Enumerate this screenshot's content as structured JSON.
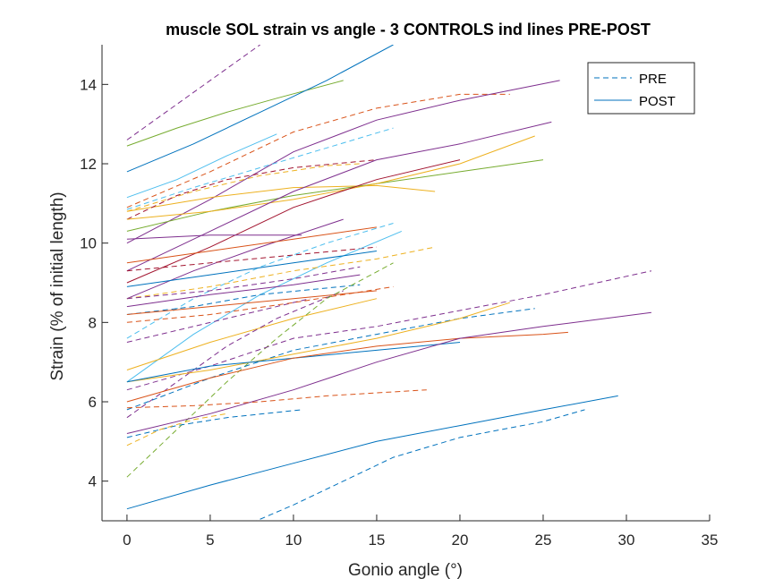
{
  "chart_data": {
    "type": "line",
    "title": "muscle SOL strain vs angle - 3 CONTROLS ind lines PRE-POST",
    "xlabel": "Gonio angle (°)",
    "ylabel": "Strain (% of initial length)",
    "xlim": [
      -1.5,
      35
    ],
    "ylim": [
      3,
      15
    ],
    "xticks": [
      "0",
      "5",
      "10",
      "15",
      "20",
      "25",
      "30",
      "35"
    ],
    "yticks": [
      "4",
      "6",
      "8",
      "10",
      "12",
      "14"
    ],
    "grid": false,
    "legend": {
      "placement": "top-right",
      "entries": [
        {
          "label": "PRE",
          "style": "dashed"
        },
        {
          "label": "POST",
          "style": "solid"
        }
      ]
    },
    "series": [
      {
        "style": "dashed",
        "color": "#7E2F8E",
        "points": [
          [
            0,
            12.6
          ],
          [
            2,
            13.2
          ],
          [
            4,
            13.8
          ],
          [
            6,
            14.4
          ],
          [
            8,
            15.0
          ]
        ]
      },
      {
        "style": "solid",
        "color": "#77AC30",
        "points": [
          [
            0,
            12.45
          ],
          [
            3,
            12.9
          ],
          [
            6,
            13.3
          ],
          [
            9,
            13.65
          ],
          [
            13,
            14.1
          ]
        ]
      },
      {
        "style": "solid",
        "color": "#0072BD",
        "points": [
          [
            0,
            11.8
          ],
          [
            4,
            12.5
          ],
          [
            8,
            13.3
          ],
          [
            12,
            14.1
          ],
          [
            16,
            15.0
          ]
        ]
      },
      {
        "style": "solid",
        "color": "#4DBEEE",
        "points": [
          [
            0,
            11.15
          ],
          [
            3,
            11.6
          ],
          [
            6,
            12.2
          ],
          [
            9,
            12.75
          ]
        ]
      },
      {
        "style": "dashed",
        "color": "#D95319",
        "points": [
          [
            0,
            10.9
          ],
          [
            5,
            11.8
          ],
          [
            10,
            12.8
          ],
          [
            15,
            13.4
          ],
          [
            20,
            13.75
          ],
          [
            23,
            13.75
          ]
        ]
      },
      {
        "style": "solid",
        "color": "#7E2F8E",
        "points": [
          [
            0,
            10.0
          ],
          [
            5,
            11.1
          ],
          [
            10,
            12.3
          ],
          [
            15,
            13.1
          ],
          [
            20,
            13.6
          ],
          [
            26,
            14.1
          ]
        ]
      },
      {
        "style": "dashed",
        "color": "#4DBEEE",
        "points": [
          [
            0,
            10.85
          ],
          [
            4,
            11.4
          ],
          [
            8,
            11.9
          ],
          [
            12,
            12.4
          ],
          [
            16,
            12.9
          ]
        ]
      },
      {
        "style": "dashed",
        "color": "#EDB120",
        "points": [
          [
            0,
            10.8
          ],
          [
            4,
            11.3
          ],
          [
            8,
            11.7
          ],
          [
            12,
            11.95
          ],
          [
            14,
            12.0
          ]
        ]
      },
      {
        "style": "solid",
        "color": "#EDB120",
        "points": [
          [
            0,
            10.8
          ],
          [
            5,
            11.15
          ],
          [
            10,
            11.4
          ],
          [
            15,
            11.45
          ],
          [
            18.5,
            11.3
          ]
        ]
      },
      {
        "style": "dashed",
        "color": "#A2142F",
        "points": [
          [
            0,
            10.6
          ],
          [
            3,
            11.2
          ],
          [
            6,
            11.6
          ],
          [
            10,
            11.9
          ],
          [
            15,
            12.1
          ]
        ]
      },
      {
        "style": "solid",
        "color": "#77AC30",
        "points": [
          [
            0,
            10.3
          ],
          [
            5,
            10.8
          ],
          [
            10,
            11.2
          ],
          [
            15,
            11.5
          ],
          [
            20,
            11.8
          ],
          [
            25,
            12.1
          ]
        ]
      },
      {
        "style": "solid",
        "color": "#EDB120",
        "points": [
          [
            0,
            10.6
          ],
          [
            5,
            10.8
          ],
          [
            10,
            11.1
          ],
          [
            15,
            11.5
          ],
          [
            20,
            12.0
          ],
          [
            24.5,
            12.7
          ]
        ]
      },
      {
        "style": "solid",
        "color": "#7E2F8E",
        "points": [
          [
            0,
            9.3
          ],
          [
            5,
            10.3
          ],
          [
            10,
            11.3
          ],
          [
            15,
            12.1
          ],
          [
            20,
            12.5
          ],
          [
            25.5,
            13.05
          ]
        ]
      },
      {
        "style": "solid",
        "color": "#A2142F",
        "points": [
          [
            0,
            9.0
          ],
          [
            5,
            9.9
          ],
          [
            10,
            10.9
          ],
          [
            15,
            11.6
          ],
          [
            20,
            12.1
          ]
        ]
      },
      {
        "style": "solid",
        "color": "#7E2F8E",
        "points": [
          [
            0,
            8.6
          ],
          [
            4,
            9.3
          ],
          [
            8,
            9.9
          ],
          [
            13,
            10.6
          ]
        ]
      },
      {
        "style": "solid",
        "color": "#7E2F8E",
        "points": [
          [
            0,
            10.1
          ],
          [
            5,
            10.2
          ],
          [
            10.5,
            10.2
          ]
        ]
      },
      {
        "style": "solid",
        "color": "#D95319",
        "points": [
          [
            0,
            9.5
          ],
          [
            5,
            9.8
          ],
          [
            10,
            10.1
          ],
          [
            15,
            10.4
          ]
        ]
      },
      {
        "style": "dashed",
        "color": "#4DBEEE",
        "points": [
          [
            0,
            7.6
          ],
          [
            4,
            8.6
          ],
          [
            8,
            9.4
          ],
          [
            12,
            10.0
          ],
          [
            16,
            10.5
          ]
        ]
      },
      {
        "style": "dashed",
        "color": "#A2142F",
        "points": [
          [
            0,
            9.3
          ],
          [
            5,
            9.5
          ],
          [
            10,
            9.7
          ],
          [
            15,
            9.9
          ]
        ]
      },
      {
        "style": "solid",
        "color": "#4DBEEE",
        "points": [
          [
            0,
            6.5
          ],
          [
            4,
            7.7
          ],
          [
            8,
            8.7
          ],
          [
            12,
            9.5
          ],
          [
            16.5,
            10.3
          ]
        ]
      },
      {
        "style": "dashed",
        "color": "#EDB120",
        "points": [
          [
            0,
            8.6
          ],
          [
            5,
            8.9
          ],
          [
            10,
            9.3
          ],
          [
            15,
            9.6
          ],
          [
            18.5,
            9.9
          ]
        ]
      },
      {
        "style": "solid",
        "color": "#0072BD",
        "points": [
          [
            0,
            8.9
          ],
          [
            5,
            9.2
          ],
          [
            10,
            9.5
          ],
          [
            15,
            9.8
          ]
        ]
      },
      {
        "style": "dashed",
        "color": "#7E2F8E",
        "points": [
          [
            0,
            8.6
          ],
          [
            5,
            8.8
          ],
          [
            10,
            9.1
          ],
          [
            14,
            9.4
          ]
        ]
      },
      {
        "style": "solid",
        "color": "#7E2F8E",
        "points": [
          [
            0,
            8.4
          ],
          [
            5,
            8.7
          ],
          [
            10,
            8.95
          ],
          [
            14,
            9.2
          ]
        ]
      },
      {
        "style": "dashed",
        "color": "#0072BD",
        "points": [
          [
            0,
            8.2
          ],
          [
            4,
            8.4
          ],
          [
            8,
            8.7
          ],
          [
            14,
            8.95
          ]
        ]
      },
      {
        "style": "dashed",
        "color": "#7E2F8E",
        "points": [
          [
            0,
            7.5
          ],
          [
            4,
            7.9
          ],
          [
            8,
            8.3
          ],
          [
            11,
            8.6
          ]
        ]
      },
      {
        "style": "solid",
        "color": "#D95319",
        "points": [
          [
            0,
            8.2
          ],
          [
            5,
            8.4
          ],
          [
            10,
            8.6
          ],
          [
            15,
            8.8
          ]
        ]
      },
      {
        "style": "dashed",
        "color": "#D95319",
        "points": [
          [
            0,
            8.0
          ],
          [
            5,
            8.2
          ],
          [
            10,
            8.5
          ],
          [
            16,
            8.9
          ]
        ]
      },
      {
        "style": "solid",
        "color": "#EDB120",
        "points": [
          [
            0,
            6.8
          ],
          [
            5,
            7.5
          ],
          [
            10,
            8.1
          ],
          [
            15,
            8.6
          ]
        ]
      },
      {
        "style": "dashed",
        "color": "#7E2F8E",
        "points": [
          [
            0,
            5.6
          ],
          [
            3,
            6.5
          ],
          [
            6,
            7.4
          ],
          [
            9,
            8.1
          ],
          [
            13,
            8.8
          ]
        ]
      },
      {
        "style": "dashed",
        "color": "#77AC30",
        "points": [
          [
            0,
            4.1
          ],
          [
            3,
            5.3
          ],
          [
            6,
            6.5
          ],
          [
            9,
            7.6
          ],
          [
            12,
            8.6
          ],
          [
            16,
            9.5
          ]
        ]
      },
      {
        "style": "dashed",
        "color": "#7E2F8E",
        "points": [
          [
            0,
            6.3
          ],
          [
            5,
            6.9
          ],
          [
            10,
            7.6
          ],
          [
            15,
            7.9
          ],
          [
            20,
            8.3
          ],
          [
            25,
            8.7
          ],
          [
            31.5,
            9.3
          ]
        ]
      },
      {
        "style": "dashed",
        "color": "#0072BD",
        "points": [
          [
            0,
            5.8
          ],
          [
            5,
            6.6
          ],
          [
            10,
            7.3
          ],
          [
            15,
            7.7
          ],
          [
            20,
            8.1
          ],
          [
            24.5,
            8.35
          ]
        ]
      },
      {
        "style": "solid",
        "color": "#EDB120",
        "points": [
          [
            0,
            6.5
          ],
          [
            5,
            6.8
          ],
          [
            10,
            7.2
          ],
          [
            15,
            7.6
          ],
          [
            20,
            8.1
          ],
          [
            23,
            8.5
          ]
        ]
      },
      {
        "style": "solid",
        "color": "#0072BD",
        "points": [
          [
            0,
            6.5
          ],
          [
            5,
            6.9
          ],
          [
            10,
            7.1
          ],
          [
            15,
            7.3
          ],
          [
            20,
            7.5
          ]
        ]
      },
      {
        "style": "solid",
        "color": "#D95319",
        "points": [
          [
            0,
            6.0
          ],
          [
            5,
            6.6
          ],
          [
            10,
            7.1
          ],
          [
            15,
            7.4
          ],
          [
            20,
            7.6
          ],
          [
            25,
            7.7
          ],
          [
            26.5,
            7.75
          ]
        ]
      },
      {
        "style": "solid",
        "color": "#7E2F8E",
        "points": [
          [
            0,
            5.2
          ],
          [
            5,
            5.7
          ],
          [
            10,
            6.3
          ],
          [
            15,
            7.0
          ],
          [
            20,
            7.6
          ],
          [
            25,
            7.9
          ],
          [
            31.5,
            8.25
          ]
        ]
      },
      {
        "style": "dashed",
        "color": "#0072BD",
        "points": [
          [
            0,
            5.1
          ],
          [
            3,
            5.4
          ],
          [
            6,
            5.6
          ],
          [
            10.5,
            5.8
          ]
        ]
      },
      {
        "style": "dashed",
        "color": "#D95319",
        "points": [
          [
            0,
            5.85
          ],
          [
            4,
            5.9
          ],
          [
            8,
            6.0
          ],
          [
            12,
            6.15
          ],
          [
            18,
            6.3
          ]
        ]
      },
      {
        "style": "dashed",
        "color": "#EDB120",
        "points": [
          [
            0,
            4.9
          ],
          [
            2,
            5.3
          ],
          [
            4,
            5.55
          ],
          [
            6,
            5.7
          ]
        ]
      },
      {
        "style": "solid",
        "color": "#0072BD",
        "points": [
          [
            0,
            3.3
          ],
          [
            5,
            3.9
          ],
          [
            10,
            4.45
          ],
          [
            15,
            5.0
          ],
          [
            20,
            5.4
          ],
          [
            25,
            5.8
          ],
          [
            29.5,
            6.15
          ]
        ]
      },
      {
        "style": "dashed",
        "color": "#0072BD",
        "points": [
          [
            7.5,
            2.95
          ],
          [
            10,
            3.4
          ],
          [
            13,
            4.0
          ],
          [
            16,
            4.6
          ],
          [
            20,
            5.1
          ],
          [
            25,
            5.5
          ],
          [
            27.5,
            5.8
          ]
        ]
      }
    ]
  }
}
